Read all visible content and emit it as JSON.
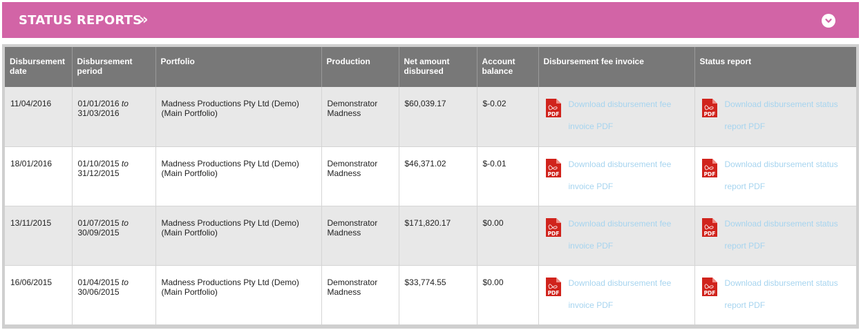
{
  "header": {
    "title": "STATUS REPORTS",
    "chevron": "»",
    "toggle_icon": "chevron-down-icon"
  },
  "colors": {
    "header_bg": "#d264a6",
    "table_header_bg": "#787878",
    "link": "#a6d4ef",
    "pdf_red": "#d0231c"
  },
  "table": {
    "columns": [
      "Disbursement date",
      "Disbursement period",
      "Portfolio",
      "Production",
      "Net amount disbursed",
      "Account balance",
      "Disbursement fee invoice",
      "Status report"
    ],
    "period_separator": "to",
    "fee_link": "Download disbursement fee invoice PDF",
    "status_link": "Download disbursement status report PDF",
    "rows": [
      {
        "date": "11/04/2016",
        "period_start": "01/01/2016",
        "period_end": "31/03/2016",
        "portfolio_line1": "Madness Productions Pty Ltd (Demo)",
        "portfolio_line2": "(Main Portfolio)",
        "production": "Demonstrator Madness",
        "net_amount": "$60,039.17",
        "balance": "$-0.02"
      },
      {
        "date": "18/01/2016",
        "period_start": "01/10/2015",
        "period_end": "31/12/2015",
        "portfolio_line1": "Madness Productions Pty Ltd (Demo)",
        "portfolio_line2": "(Main Portfolio)",
        "production": "Demonstrator Madness",
        "net_amount": "$46,371.02",
        "balance": "$-0.01"
      },
      {
        "date": "13/11/2015",
        "period_start": "01/07/2015",
        "period_end": "30/09/2015",
        "portfolio_line1": "Madness Productions Pty Ltd (Demo)",
        "portfolio_line2": "(Main Portfolio)",
        "production": "Demonstrator Madness",
        "net_amount": "$171,820.17",
        "balance": "$0.00"
      },
      {
        "date": "16/06/2015",
        "period_start": "01/04/2015",
        "period_end": "30/06/2015",
        "portfolio_line1": "Madness Productions Pty Ltd (Demo)",
        "portfolio_line2": "(Main Portfolio)",
        "production": "Demonstrator Madness",
        "net_amount": "$33,774.55",
        "balance": "$0.00"
      }
    ]
  }
}
